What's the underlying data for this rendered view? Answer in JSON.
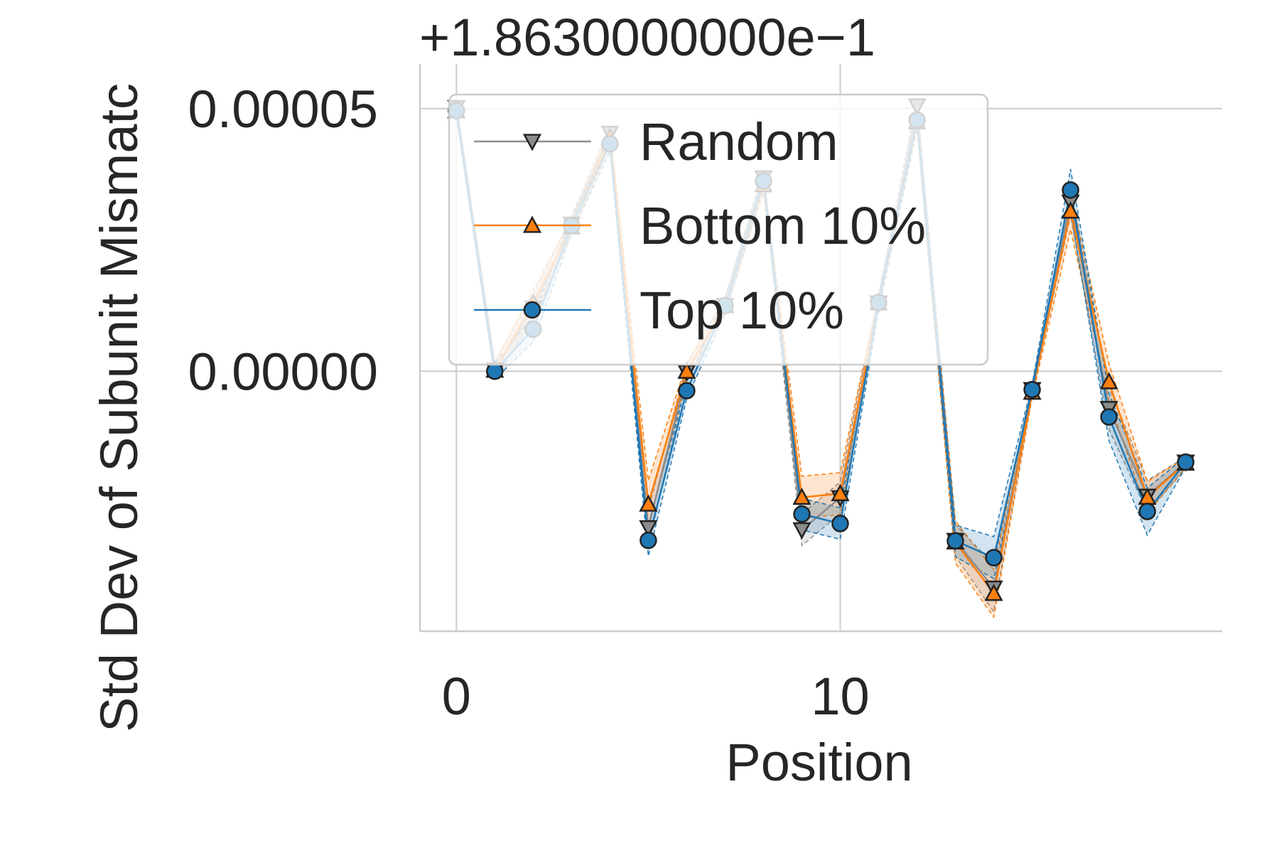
{
  "chart_data": {
    "type": "line",
    "offset_label": "+1.8630000000e−1",
    "xlabel": "Position",
    "ylabel": "Std Dev of Subunit Mismatc",
    "xticks": [
      0,
      10
    ],
    "yticks": [
      0.0,
      5e-05
    ],
    "ytick_labels": [
      "0.00000",
      "0.00005"
    ],
    "xlim": [
      -0.95,
      19.95
    ],
    "ylim": [
      -4.95e-05,
      5.85e-05
    ],
    "grid": true,
    "legend": {
      "position": "upper-center"
    },
    "x": [
      0,
      1,
      2,
      3,
      4,
      5,
      6,
      7,
      8,
      9,
      10,
      11,
      12,
      13,
      14,
      15,
      16,
      17,
      18,
      19
    ],
    "series": [
      {
        "name": "Random",
        "color": "#8c8c8c",
        "marker": "triangle-down",
        "values": [
          5.02e-05,
          2e-07,
          1.2e-05,
          2.8e-05,
          4.53e-05,
          -2.98e-05,
          -2e-07,
          1.25e-05,
          3.68e-05,
          -3.02e-05,
          -2.41e-05,
          1.3e-05,
          5.05e-05,
          -3.22e-05,
          -4.13e-05,
          -3.5e-06,
          3.22e-05,
          -7.1e-06,
          -2.38e-05,
          -1.73e-05
        ],
        "band": [
          1.2e-06,
          1.5e-06,
          2.5e-06,
          1.5e-06,
          1.5e-06,
          3.5e-06,
          1.5e-06,
          1.5e-06,
          1.5e-06,
          3e-06,
          3e-06,
          1.5e-06,
          1.5e-06,
          3e-06,
          4.5e-06,
          1e-06,
          2.5e-06,
          4e-06,
          3e-06,
          1e-06
        ]
      },
      {
        "name": "Bottom 10%",
        "color": "#ff7f0e",
        "marker": "triangle-up",
        "values": [
          4.96e-05,
          2e-07,
          1.3e-05,
          2.75e-05,
          4.45e-05,
          -2.53e-05,
          0.0,
          1.25e-05,
          3.55e-05,
          -2.4e-05,
          -2.33e-05,
          1.3e-05,
          4.75e-05,
          -3.25e-05,
          -4.23e-05,
          -4e-06,
          3.05e-05,
          -2e-06,
          -2.4e-05,
          -1.75e-05
        ],
        "band": [
          1.2e-06,
          1.5e-06,
          2.5e-06,
          1.5e-06,
          1.5e-06,
          4.5e-06,
          1.5e-06,
          1.5e-06,
          1.5e-06,
          4e-06,
          4e-06,
          1.5e-06,
          1.5e-06,
          4e-06,
          4.5e-06,
          1e-06,
          3.5e-06,
          3.5e-06,
          3e-06,
          1e-06
        ]
      },
      {
        "name": "Top 10%",
        "color": "#1f77b4",
        "marker": "circle",
        "values": [
          4.96e-05,
          0.0,
          8e-06,
          2.77e-05,
          4.33e-05,
          -3.22e-05,
          -3.7e-06,
          1.25e-05,
          3.62e-05,
          -2.72e-05,
          -2.9e-05,
          1.31e-05,
          4.78e-05,
          -3.23e-05,
          -3.55e-05,
          -3.5e-06,
          3.45e-05,
          -8.7e-06,
          -2.67e-05,
          -1.73e-05
        ],
        "band": [
          1.2e-06,
          1.5e-06,
          2.5e-06,
          1.5e-06,
          1.5e-06,
          3e-06,
          1.5e-06,
          1.5e-06,
          1.5e-06,
          3e-06,
          3e-06,
          1.5e-06,
          1.5e-06,
          3e-06,
          4e-06,
          1e-06,
          4e-06,
          4.5e-06,
          4.5e-06,
          1e-06
        ]
      }
    ]
  }
}
